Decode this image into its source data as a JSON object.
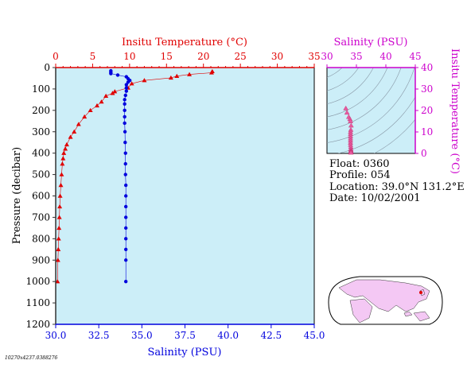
{
  "colors": {
    "plot_bg": "#cceef8",
    "temperature": "#e00000",
    "salinity": "#0000dd",
    "inset_axis": "#cc00cc",
    "inset_point": "#e85aa0",
    "grid": "#8a9aa8",
    "pressure_axis": "#333333",
    "land": "#f4c8f4",
    "map_bg": "#ffffff"
  },
  "info": {
    "float": "Float:  0360",
    "profile": "Profile:  054",
    "location": "Location:  39.0°N  131.2°E",
    "date": "Date:  10/02/2001"
  },
  "footer": "10270x4237.0388276",
  "chart_data": [
    {
      "type": "scatter",
      "name": "main-profile",
      "ylabel": "Pressure (decibar)",
      "ylim": [
        1200,
        0
      ],
      "yticks": [
        0,
        100,
        200,
        300,
        400,
        500,
        600,
        700,
        800,
        900,
        1000,
        1100,
        1200
      ],
      "ytick_labels": [
        "0",
        "100",
        "200",
        "300",
        "400",
        "500",
        "600",
        "700",
        "800",
        "900",
        "1000",
        "1100",
        "1200"
      ],
      "top_axis": {
        "label": "Insitu Temperature (°C)",
        "range": [
          0,
          35
        ],
        "ticks": [
          0,
          5,
          10,
          15,
          20,
          25,
          30,
          35
        ],
        "tick_labels": [
          "0",
          "5",
          "10",
          "15",
          "20",
          "25",
          "30",
          "35"
        ]
      },
      "bottom_axis": {
        "label": "Salinity (PSU)",
        "range": [
          30,
          45
        ],
        "ticks": [
          30,
          32.5,
          35,
          37.5,
          40,
          42.5,
          45
        ],
        "tick_labels": [
          "30.0",
          "32.5",
          "35.0",
          "37.5",
          "40.0",
          "42.5",
          "45.0"
        ]
      },
      "series": [
        {
          "variable": "temperature",
          "marker": "triangle",
          "points": [
            [
              21.2,
              18
            ],
            [
              21.1,
              24
            ],
            [
              18.1,
              32
            ],
            [
              16.4,
              40
            ],
            [
              15.6,
              48
            ],
            [
              12.0,
              60
            ],
            [
              10.3,
              75
            ],
            [
              9.8,
              95
            ],
            [
              8.0,
              112
            ],
            [
              7.7,
              120
            ],
            [
              6.8,
              133
            ],
            [
              6.2,
              160
            ],
            [
              5.6,
              178
            ],
            [
              4.7,
              200
            ],
            [
              3.9,
              230
            ],
            [
              3.1,
              265
            ],
            [
              2.5,
              300
            ],
            [
              2.0,
              325
            ],
            [
              1.5,
              360
            ],
            [
              1.3,
              380
            ],
            [
              1.1,
              400
            ],
            [
              1.0,
              425
            ],
            [
              0.9,
              450
            ],
            [
              0.8,
              500
            ],
            [
              0.7,
              550
            ],
            [
              0.6,
              600
            ],
            [
              0.55,
              650
            ],
            [
              0.5,
              700
            ],
            [
              0.45,
              750
            ],
            [
              0.4,
              800
            ],
            [
              0.35,
              850
            ],
            [
              0.3,
              900
            ],
            [
              0.25,
              1000
            ]
          ]
        },
        {
          "variable": "salinity",
          "marker": "circle",
          "points": [
            [
              33.2,
              15
            ],
            [
              33.2,
              22
            ],
            [
              33.2,
              28
            ],
            [
              33.6,
              35
            ],
            [
              34.1,
              43
            ],
            [
              34.2,
              52
            ],
            [
              34.3,
              60
            ],
            [
              34.2,
              68
            ],
            [
              34.1,
              80
            ],
            [
              34.1,
              95
            ],
            [
              34.1,
              110
            ],
            [
              34.05,
              130
            ],
            [
              34.0,
              150
            ],
            [
              34.0,
              170
            ],
            [
              34.0,
              200
            ],
            [
              34.0,
              230
            ],
            [
              34.0,
              260
            ],
            [
              34.02,
              300
            ],
            [
              34.03,
              350
            ],
            [
              34.05,
              400
            ],
            [
              34.05,
              450
            ],
            [
              34.05,
              500
            ],
            [
              34.07,
              550
            ],
            [
              34.07,
              600
            ],
            [
              34.07,
              650
            ],
            [
              34.07,
              700
            ],
            [
              34.07,
              750
            ],
            [
              34.07,
              800
            ],
            [
              34.07,
              850
            ],
            [
              34.07,
              900
            ],
            [
              34.07,
              1000
            ]
          ]
        }
      ]
    },
    {
      "type": "scatter",
      "name": "ts-inset",
      "xlabel": "Salinity (PSU)",
      "ylabel": "Insitu Temperature (°C)",
      "xlim": [
        30,
        45
      ],
      "ylim": [
        0,
        40
      ],
      "xticks": [
        30,
        35,
        40,
        45
      ],
      "xtick_labels": [
        "30",
        "35",
        "40",
        "45"
      ],
      "yticks": [
        0,
        10,
        20,
        30,
        40
      ],
      "ytick_labels": [
        "0",
        "10",
        "20",
        "30",
        "40"
      ],
      "points": [
        [
          33.2,
          21.0
        ],
        [
          33.4,
          19.0
        ],
        [
          33.7,
          17.0
        ],
        [
          33.9,
          16.0
        ],
        [
          34.0,
          15.0
        ],
        [
          34.1,
          13.0
        ],
        [
          34.05,
          11.0
        ],
        [
          34.0,
          10.0
        ],
        [
          34.0,
          9.0
        ],
        [
          34.0,
          8.0
        ],
        [
          34.0,
          7.0
        ],
        [
          34.0,
          6.0
        ],
        [
          34.0,
          5.0
        ],
        [
          34.0,
          4.0
        ],
        [
          34.05,
          3.0
        ],
        [
          34.05,
          2.0
        ],
        [
          34.07,
          1.5
        ],
        [
          34.07,
          1.0
        ],
        [
          34.07,
          0.8
        ],
        [
          34.07,
          0.6
        ],
        [
          34.07,
          0.5
        ],
        [
          34.07,
          0.4
        ]
      ]
    }
  ]
}
